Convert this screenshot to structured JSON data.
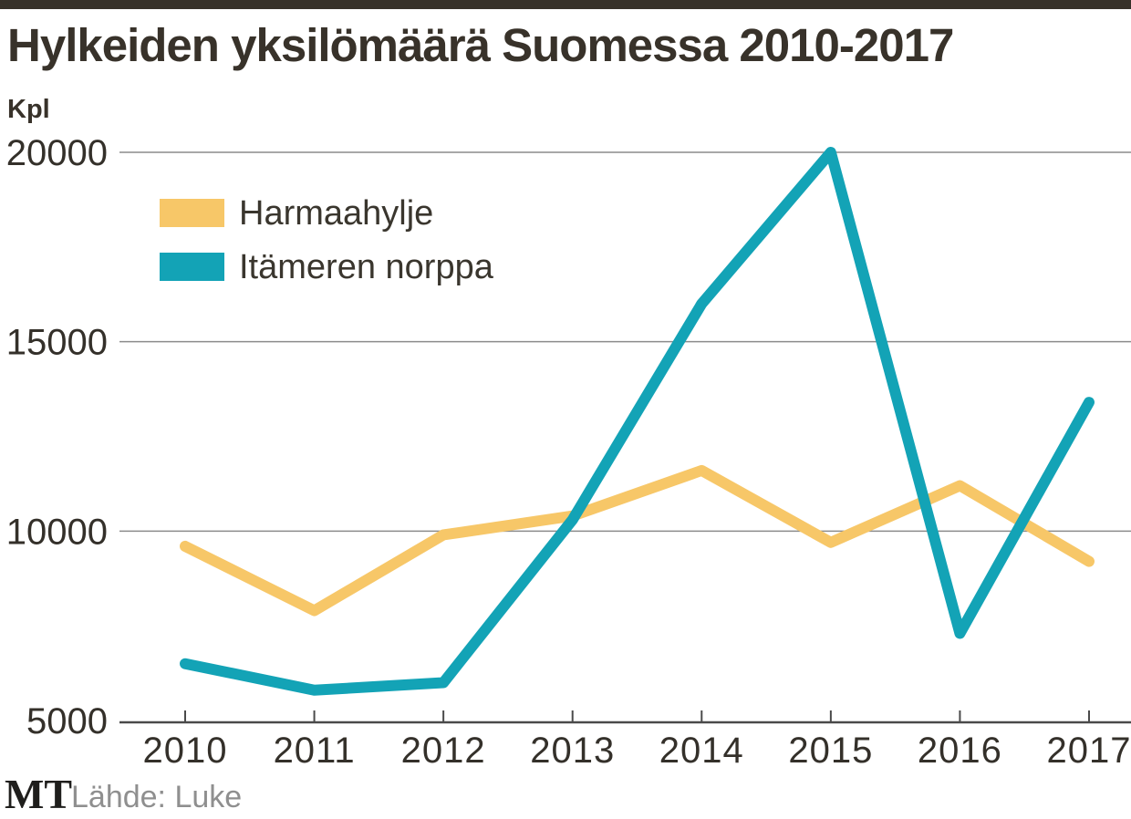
{
  "header": {
    "title": "Hylkeiden yksilömäärä Suomessa 2010-2017"
  },
  "footer": {
    "logo": "MT",
    "source": "Lähde: Luke"
  },
  "colors": {
    "accent_bar": "#38322a",
    "title_text": "#38322a",
    "grid_line": "#8c8c8c",
    "axis_line": "#4a4a4a",
    "tick_label": "#34302a",
    "source_text": "#8f8f8f",
    "series_harmaahylje": "#f7c768",
    "series_itameren_norppa": "#13a3b6"
  },
  "chart_data": {
    "type": "line",
    "title": "Hylkeiden yksilömäärä Suomessa 2010-2017",
    "ylabel": "Kpl",
    "xlabel": "",
    "x": [
      2010,
      2011,
      2012,
      2013,
      2014,
      2015,
      2016,
      2017
    ],
    "x_tick_labels": [
      "2010",
      "2011",
      "2012",
      "2013",
      "2014",
      "2015",
      "2016",
      "2017"
    ],
    "series": [
      {
        "name": "Harmaahylje",
        "color": "#f7c768",
        "values": [
          9600,
          7900,
          9900,
          10400,
          11600,
          9700,
          11200,
          9200
        ]
      },
      {
        "name": "Itämeren norppa",
        "color": "#13a3b6",
        "values": [
          6500,
          5800,
          6000,
          10300,
          16000,
          20000,
          7300,
          13400
        ]
      }
    ],
    "ylim": [
      5000,
      20000
    ],
    "yticks": [
      5000,
      10000,
      15000,
      20000
    ],
    "ytick_labels": [
      "5000",
      "10000",
      "15000",
      "20000"
    ],
    "grid": "horizontal",
    "legend_position": "top-left-inside"
  }
}
